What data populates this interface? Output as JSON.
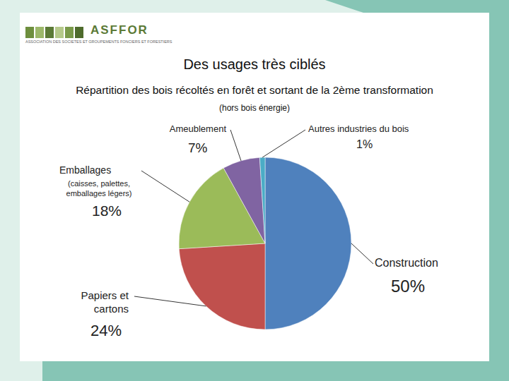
{
  "header": {
    "name": "ASFFOR",
    "subtitle": "ASSOCIATION DES SOCIETES ET GROUPEMENTS FONCIERS ET FORESTIERS"
  },
  "chart_data": {
    "type": "pie",
    "title": "Des usages très ciblés",
    "subtitle": "Répartition des bois récoltés en forêt et sortant de la 2ème transformation",
    "annotations": [
      {
        "text": "(hors bois énergie)"
      },
      {
        "text": "(caisses, palettes, emballages légers)",
        "category": "Emballages"
      }
    ],
    "categories": [
      "Construction",
      "Papiers et cartons",
      "Emballages",
      "Ameublement",
      "Autres industries du bois"
    ],
    "values": [
      50,
      24,
      18,
      7,
      1
    ],
    "value_labels": [
      "50%",
      "24%",
      "18%",
      "7%",
      "1%"
    ],
    "colors": [
      "#4f81bd",
      "#c0504d",
      "#9bbb59",
      "#8064a2",
      "#4bacc6"
    ],
    "data_labels": true,
    "legend": false
  }
}
